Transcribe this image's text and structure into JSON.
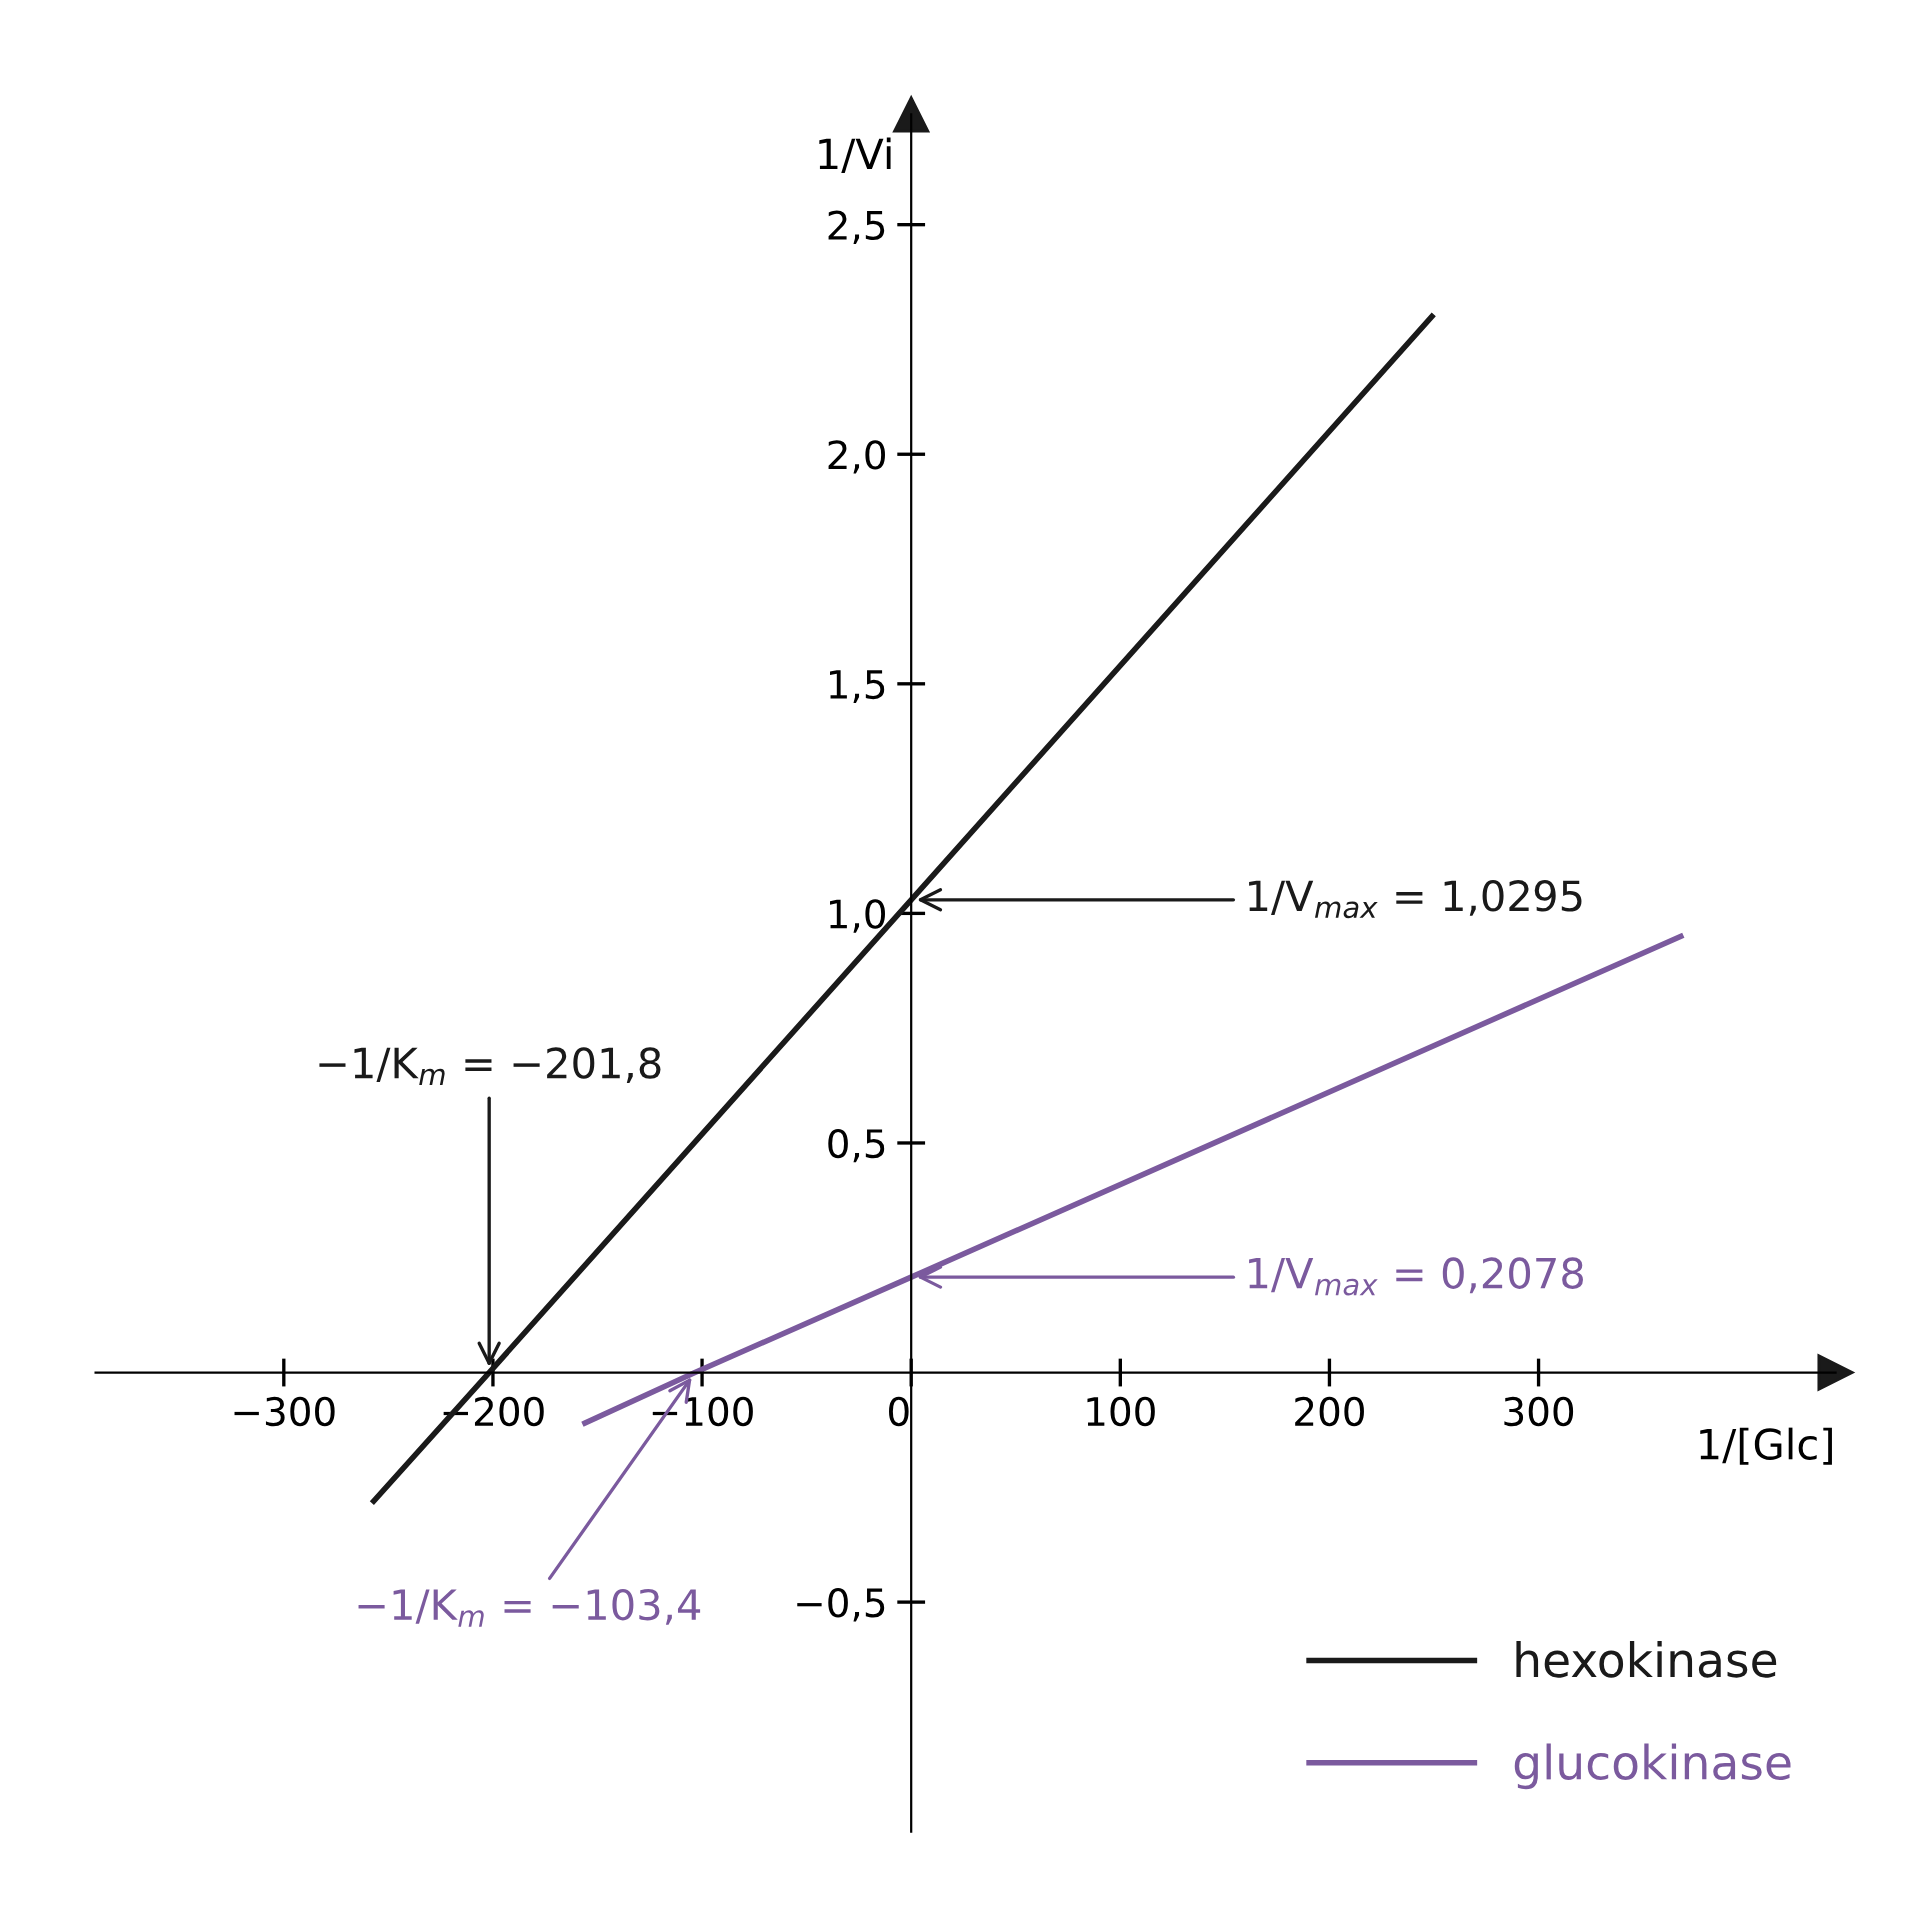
{
  "chart_data": {
    "type": "line",
    "xlabel": "1/[Glc]",
    "ylabel": "1/Vi",
    "series": [
      {
        "name": "hexokinase",
        "color": "#1a1a1a",
        "x": [
          -257,
          -201.8,
          0,
          249
        ],
        "values": [
          -0.28,
          0,
          1.0295,
          2.3
        ]
      },
      {
        "name": "glucokinase",
        "color": "#7b5a9e",
        "x": [
          -156,
          -103.4,
          0,
          368
        ],
        "values": [
          -0.11,
          0,
          0.2078,
          0.95
        ]
      }
    ],
    "xlim": [
      -390,
      442
    ],
    "ylim": [
      -1.0,
      2.74
    ],
    "xticks": [
      {
        "value": -300,
        "label": "−300"
      },
      {
        "value": -200,
        "label": "−200"
      },
      {
        "value": -100,
        "label": "−100"
      },
      0,
      100,
      200,
      300
    ],
    "yticks": [
      {
        "value": -0.5,
        "label": "−0,5"
      },
      {
        "value": 0.5,
        "label": "0,5"
      },
      {
        "value": 1.0,
        "label": "1,0"
      },
      {
        "value": 1.5,
        "label": "1,5"
      },
      {
        "value": 2.0,
        "label": "2,0"
      },
      {
        "value": 2.5,
        "label": "2,5"
      }
    ],
    "annotations": [
      {
        "text": "−1/K$_{m}$ = −201,8",
        "x": -201.8,
        "y": 0
      },
      {
        "text": "1/V$_{max}$ = 1,0295",
        "x": 0,
        "y": 1.0295
      },
      {
        "text": "1/V$_{max}$ = 0,2078",
        "x": 0,
        "y": 0.2078
      },
      {
        "text": "−1/K$_{m}$ = −103,4",
        "x": -103.4,
        "y": 0
      }
    ],
    "legend": "bottom right",
    "grid": false,
    "marker": "none",
    "line_style": "solid"
  }
}
